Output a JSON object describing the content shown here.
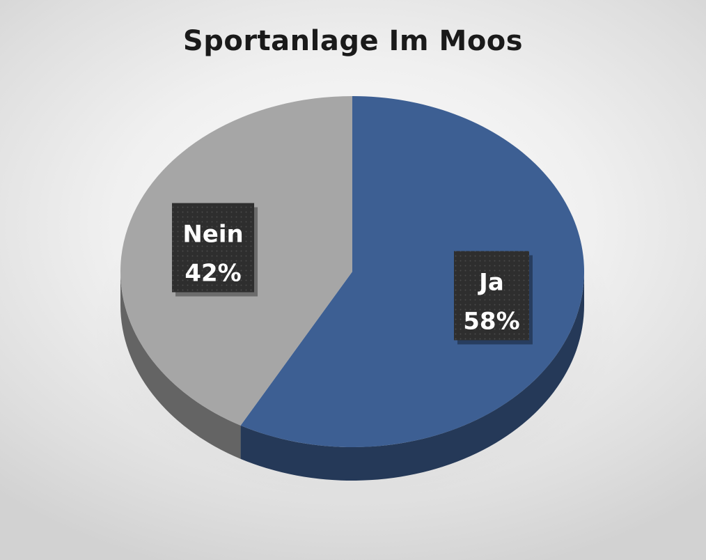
{
  "chart_data": {
    "type": "pie",
    "title": "Sportanlage Im Moos",
    "categories": [
      "Ja",
      "Nein"
    ],
    "values": [
      58,
      42
    ],
    "unit": "%",
    "colors": [
      "#3d5f93",
      "#a6a6a6"
    ],
    "labels": [
      {
        "category": "Ja",
        "percent": "58%"
      },
      {
        "category": "Nein",
        "percent": "42%"
      }
    ],
    "legend": "none",
    "style": "3d"
  }
}
